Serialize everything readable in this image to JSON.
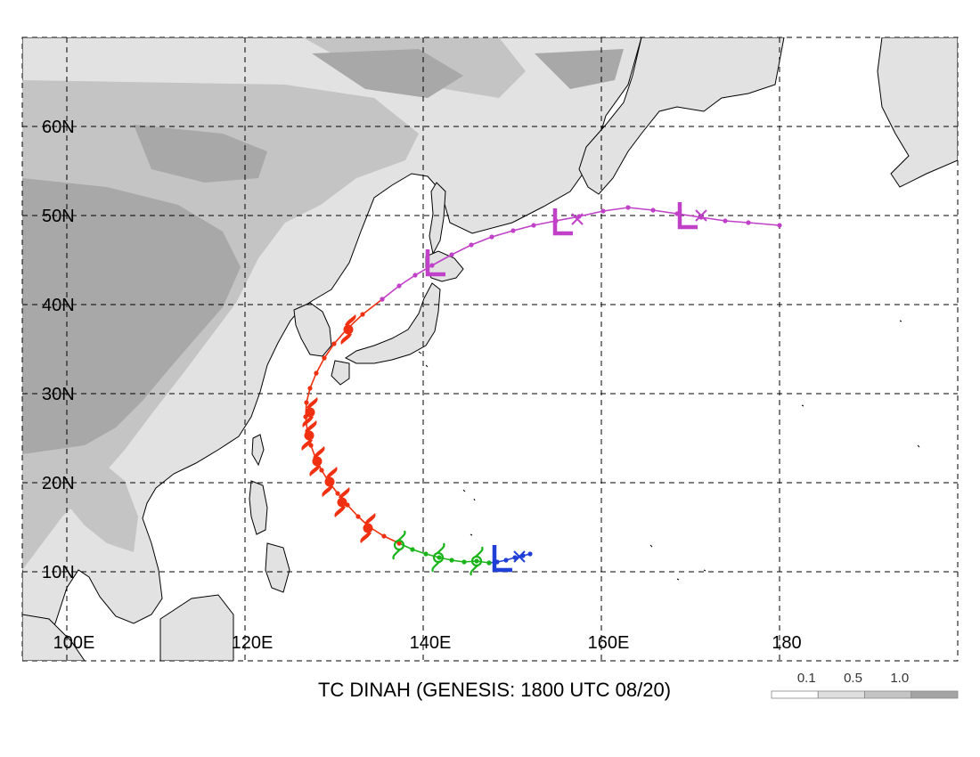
{
  "title": "TC DINAH (GENESIS: 1800 UTC 08/20)",
  "lat_labels": [
    {
      "lat": 60,
      "text": "60N"
    },
    {
      "lat": 50,
      "text": "50N"
    },
    {
      "lat": 40,
      "text": "40N"
    },
    {
      "lat": 30,
      "text": "30N"
    },
    {
      "lat": 20,
      "text": "20N"
    },
    {
      "lat": 10,
      "text": "10N"
    }
  ],
  "lon_labels": [
    {
      "lon": 100,
      "text": "100E"
    },
    {
      "lon": 120,
      "text": "120E"
    },
    {
      "lon": 140,
      "text": "140E"
    },
    {
      "lon": 160,
      "text": "160E"
    },
    {
      "lon": 180,
      "text": "180"
    }
  ],
  "legend": {
    "labels": [
      "0.1",
      "0.5",
      "1.0"
    ],
    "colors": [
      "#ffffff",
      "#dedede",
      "#c4c4c4",
      "#a4a4a4"
    ]
  },
  "colors": {
    "depression": "#1f3fd6",
    "storm": "#18b418",
    "typhoon": "#f03010",
    "extratropical": "#c040c8",
    "land_shade_light": "#e2e2e2",
    "land_shade_mid": "#c4c4c4",
    "land_shade_dark": "#a8a8a8"
  },
  "chart_data": {
    "type": "track",
    "axes": {
      "lon_range": [
        95,
        200
      ],
      "lat_range": [
        0,
        70
      ]
    },
    "grid": true,
    "segments": [
      {
        "stage": "depression",
        "color": "#1f3fd6",
        "points": [
          [
            152.0,
            12.0
          ],
          [
            151.2,
            11.8
          ],
          [
            150.3,
            11.6
          ],
          [
            149.3,
            11.3
          ],
          [
            148.3,
            11.1
          ],
          [
            147.4,
            11.0
          ]
        ]
      },
      {
        "stage": "storm",
        "color": "#18b418",
        "points": [
          [
            147.4,
            11.0
          ],
          [
            146.0,
            11.2
          ],
          [
            144.6,
            11.1
          ],
          [
            143.2,
            11.3
          ],
          [
            141.8,
            11.6
          ],
          [
            140.3,
            12.0
          ],
          [
            138.8,
            12.5
          ],
          [
            137.3,
            13.2
          ]
        ]
      },
      {
        "stage": "typhoon",
        "color": "#f03010",
        "points": [
          [
            137.3,
            13.2
          ],
          [
            135.6,
            14.0
          ],
          [
            134.0,
            15.0
          ],
          [
            132.7,
            16.2
          ],
          [
            131.5,
            17.5
          ],
          [
            130.4,
            18.8
          ],
          [
            129.4,
            20.1
          ],
          [
            128.6,
            21.4
          ],
          [
            127.9,
            22.8
          ],
          [
            127.4,
            24.2
          ],
          [
            127.0,
            25.8
          ],
          [
            126.8,
            27.4
          ],
          [
            126.9,
            29.0
          ],
          [
            127.3,
            30.6
          ],
          [
            128.0,
            32.3
          ],
          [
            128.9,
            34.0
          ],
          [
            130.0,
            35.6
          ],
          [
            131.4,
            37.2
          ],
          [
            133.2,
            38.9
          ],
          [
            135.4,
            40.6
          ]
        ]
      },
      {
        "stage": "extratropical",
        "color": "#c040c8",
        "points": [
          [
            135.4,
            40.6
          ],
          [
            137.3,
            42.1
          ],
          [
            139.1,
            43.3
          ],
          [
            141.0,
            44.4
          ],
          [
            143.2,
            45.6
          ],
          [
            145.4,
            46.7
          ],
          [
            147.7,
            47.6
          ],
          [
            150.1,
            48.3
          ],
          [
            152.4,
            48.9
          ],
          [
            154.9,
            49.4
          ],
          [
            157.5,
            49.9
          ],
          [
            160.2,
            50.5
          ],
          [
            163.0,
            50.9
          ],
          [
            165.8,
            50.6
          ],
          [
            168.5,
            50.2
          ],
          [
            171.2,
            49.8
          ],
          [
            173.9,
            49.4
          ],
          [
            176.5,
            49.2
          ],
          [
            180.0,
            48.9
          ]
        ]
      }
    ],
    "symbols": [
      {
        "type": "X",
        "lon": 150.8,
        "lat": 11.7,
        "color": "#1f3fd6"
      },
      {
        "type": "L",
        "lon": 148.8,
        "lat": 11.4,
        "color": "#1f3fd6"
      },
      {
        "type": "storm",
        "lon": 146.0,
        "lat": 11.2,
        "color": "#18b418"
      },
      {
        "type": "storm",
        "lon": 141.7,
        "lat": 11.6,
        "color": "#18b418"
      },
      {
        "type": "storm",
        "lon": 137.3,
        "lat": 13.0,
        "color": "#18b418"
      },
      {
        "type": "typhoon",
        "lon": 133.8,
        "lat": 14.9,
        "color": "#f03010"
      },
      {
        "type": "typhoon",
        "lon": 130.9,
        "lat": 17.8,
        "color": "#f03010"
      },
      {
        "type": "typhoon",
        "lon": 129.5,
        "lat": 20.1,
        "color": "#f03010"
      },
      {
        "type": "typhoon",
        "lon": 128.1,
        "lat": 22.4,
        "color": "#f03010"
      },
      {
        "type": "typhoon",
        "lon": 127.2,
        "lat": 25.3,
        "color": "#f03010"
      },
      {
        "type": "typhoon",
        "lon": 127.3,
        "lat": 27.9,
        "color": "#f03010"
      },
      {
        "type": "typhoon",
        "lon": 131.6,
        "lat": 37.2,
        "color": "#f03010"
      },
      {
        "type": "L",
        "lon": 141.3,
        "lat": 44.6,
        "color": "#c040c8"
      },
      {
        "type": "L",
        "lon": 155.6,
        "lat": 49.2,
        "color": "#c040c8"
      },
      {
        "type": "X",
        "lon": 157.3,
        "lat": 49.6,
        "color": "#c040c8"
      },
      {
        "type": "L",
        "lon": 169.6,
        "lat": 49.9,
        "color": "#c040c8"
      },
      {
        "type": "X",
        "lon": 171.2,
        "lat": 50.0,
        "color": "#c040c8"
      }
    ]
  }
}
